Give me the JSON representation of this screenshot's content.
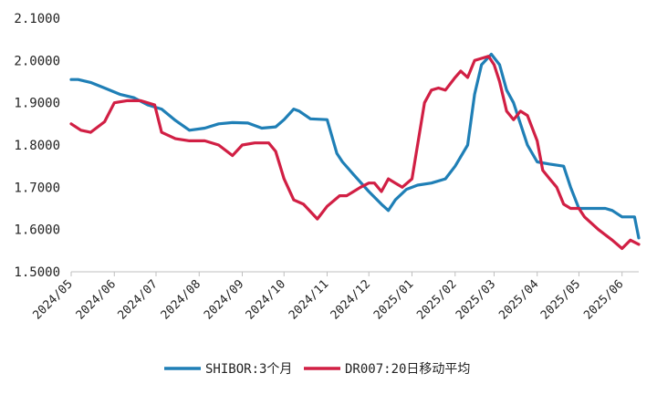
{
  "chart_data": {
    "type": "line",
    "title": "",
    "xlabel": "",
    "ylabel": "",
    "ylim": [
      1.5,
      2.1
    ],
    "yticks": [
      "1.5000",
      "1.6000",
      "1.7000",
      "1.8000",
      "1.9000",
      "2.0000",
      "2.1000"
    ],
    "xticks": [
      "2024/05",
      "2024/06",
      "2024/07",
      "2024/08",
      "2024/09",
      "2024/10",
      "2024/11",
      "2024/12",
      "2025/01",
      "2025/02",
      "2025/03",
      "2025/04",
      "2025/05",
      "2025/06"
    ],
    "grid": false,
    "legend": "bottom-center",
    "series": [
      {
        "name": "SHIBOR:3个月",
        "color": "#1f7fb6",
        "x": [
          "2024-05-01",
          "2024-05-06",
          "2024-05-15",
          "2024-05-25",
          "2024-06-05",
          "2024-06-15",
          "2024-06-25",
          "2024-07-05",
          "2024-07-15",
          "2024-07-25",
          "2024-08-05",
          "2024-08-15",
          "2024-08-25",
          "2024-09-05",
          "2024-09-15",
          "2024-09-25",
          "2024-10-01",
          "2024-10-08",
          "2024-10-12",
          "2024-10-20",
          "2024-11-01",
          "2024-11-08",
          "2024-11-12",
          "2024-11-20",
          "2024-12-01",
          "2024-12-10",
          "2024-12-15",
          "2024-12-20",
          "2024-12-28",
          "2025-01-05",
          "2025-01-15",
          "2025-01-25",
          "2025-02-01",
          "2025-02-10",
          "2025-02-15",
          "2025-02-20",
          "2025-02-27",
          "2025-03-05",
          "2025-03-10",
          "2025-03-15",
          "2025-03-25",
          "2025-04-01",
          "2025-04-10",
          "2025-04-20",
          "2025-04-25",
          "2025-05-01",
          "2025-05-10",
          "2025-05-20",
          "2025-05-25",
          "2025-06-01",
          "2025-06-10",
          "2025-06-13"
        ],
        "values": [
          1.955,
          1.955,
          1.948,
          1.935,
          1.92,
          1.912,
          1.895,
          1.885,
          1.858,
          1.835,
          1.84,
          1.85,
          1.853,
          1.852,
          1.84,
          1.843,
          1.86,
          1.885,
          1.88,
          1.862,
          1.86,
          1.78,
          1.76,
          1.73,
          1.69,
          1.66,
          1.645,
          1.67,
          1.695,
          1.705,
          1.71,
          1.72,
          1.75,
          1.8,
          1.92,
          1.99,
          2.015,
          1.99,
          1.93,
          1.9,
          1.8,
          1.76,
          1.755,
          1.75,
          1.7,
          1.65,
          1.65,
          1.65,
          1.645,
          1.63,
          1.63,
          1.58
        ]
      },
      {
        "name": "DR007:20日移动平均",
        "color": "#d11f44",
        "x": [
          "2024-05-01",
          "2024-05-08",
          "2024-05-15",
          "2024-05-25",
          "2024-06-01",
          "2024-06-10",
          "2024-06-20",
          "2024-06-30",
          "2024-07-05",
          "2024-07-15",
          "2024-07-25",
          "2024-08-05",
          "2024-08-15",
          "2024-08-25",
          "2024-09-01",
          "2024-09-10",
          "2024-09-20",
          "2024-09-25",
          "2024-10-01",
          "2024-10-08",
          "2024-10-15",
          "2024-10-25",
          "2024-11-01",
          "2024-11-10",
          "2024-11-15",
          "2024-11-20",
          "2024-11-25",
          "2024-12-01",
          "2024-12-05",
          "2024-12-10",
          "2024-12-15",
          "2024-12-20",
          "2024-12-25",
          "2025-01-01",
          "2025-01-05",
          "2025-01-10",
          "2025-01-15",
          "2025-01-20",
          "2025-01-25",
          "2025-02-01",
          "2025-02-05",
          "2025-02-10",
          "2025-02-15",
          "2025-02-20",
          "2025-02-25",
          "2025-03-01",
          "2025-03-05",
          "2025-03-10",
          "2025-03-15",
          "2025-03-20",
          "2025-03-25",
          "2025-04-01",
          "2025-04-05",
          "2025-04-10",
          "2025-04-15",
          "2025-04-20",
          "2025-04-25",
          "2025-05-01",
          "2025-05-05",
          "2025-05-15",
          "2025-05-25",
          "2025-06-01",
          "2025-06-07",
          "2025-06-13"
        ],
        "values": [
          1.85,
          1.835,
          1.83,
          1.855,
          1.9,
          1.905,
          1.905,
          1.895,
          1.83,
          1.815,
          1.81,
          1.81,
          1.8,
          1.775,
          1.8,
          1.805,
          1.805,
          1.785,
          1.72,
          1.67,
          1.66,
          1.625,
          1.655,
          1.68,
          1.68,
          1.69,
          1.7,
          1.71,
          1.71,
          1.69,
          1.72,
          1.71,
          1.7,
          1.72,
          1.8,
          1.9,
          1.93,
          1.935,
          1.93,
          1.96,
          1.975,
          1.96,
          2.0,
          2.005,
          2.01,
          1.99,
          1.95,
          1.88,
          1.86,
          1.88,
          1.87,
          1.81,
          1.74,
          1.72,
          1.7,
          1.66,
          1.65,
          1.65,
          1.63,
          1.6,
          1.575,
          1.555,
          1.575,
          1.565
        ]
      }
    ]
  }
}
